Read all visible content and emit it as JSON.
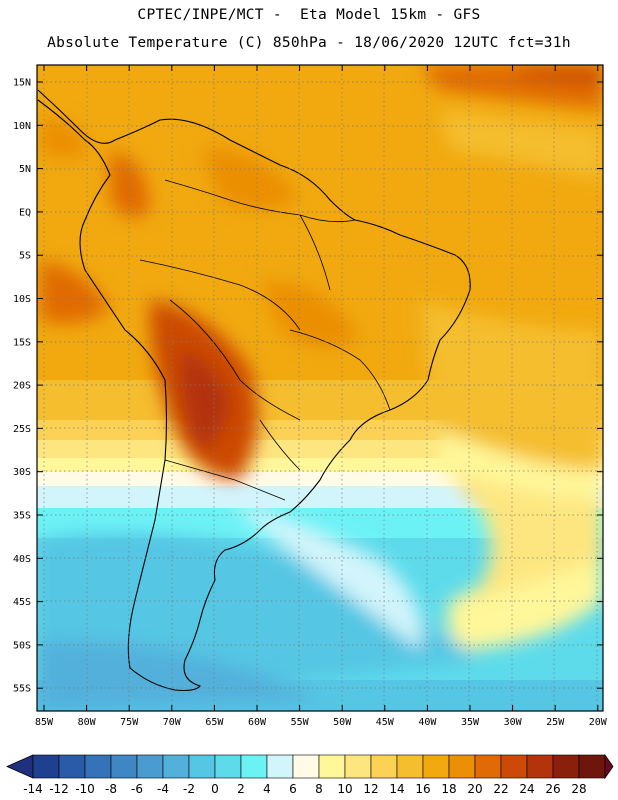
{
  "header": {
    "line1": "CPTEC/INPE/MCT -  Eta Model 15km - GFS",
    "line2": "Absolute Temperature (C) 850hPa - 18/06/2020 12UTC fct=31h"
  },
  "axes": {
    "lat_labels": [
      "15N",
      "10N",
      "5N",
      "EQ",
      "5S",
      "10S",
      "15S",
      "20S",
      "25S",
      "30S",
      "35S",
      "40S",
      "45S",
      "50S",
      "55S"
    ],
    "lon_labels": [
      "85W",
      "80W",
      "75W",
      "70W",
      "65W",
      "60W",
      "55W",
      "50W",
      "45W",
      "40W",
      "35W",
      "30W",
      "25W",
      "20W"
    ]
  },
  "colorbar": {
    "labels": [
      "-14",
      "-12",
      "-10",
      "-8",
      "-6",
      "-4",
      "-2",
      "0",
      "2",
      "4",
      "6",
      "8",
      "10",
      "12",
      "14",
      "16",
      "18",
      "20",
      "22",
      "24",
      "26",
      "28"
    ],
    "colors": [
      "#1f3f8f",
      "#2a5ba8",
      "#3573b8",
      "#3f87c4",
      "#4a9bd0",
      "#52b0db",
      "#55c6e4",
      "#5ddbeb",
      "#6cf2f5",
      "#d2f5fb",
      "#fffbe6",
      "#fff79a",
      "#fde680",
      "#fbd255",
      "#f5be2e",
      "#f1a90f",
      "#eb8f06",
      "#e06a05",
      "#cc4a06",
      "#b3330a",
      "#8a1f0c",
      "#6e160b"
    ],
    "under_color": "#21307e",
    "over_color": "#6a0a20"
  }
}
